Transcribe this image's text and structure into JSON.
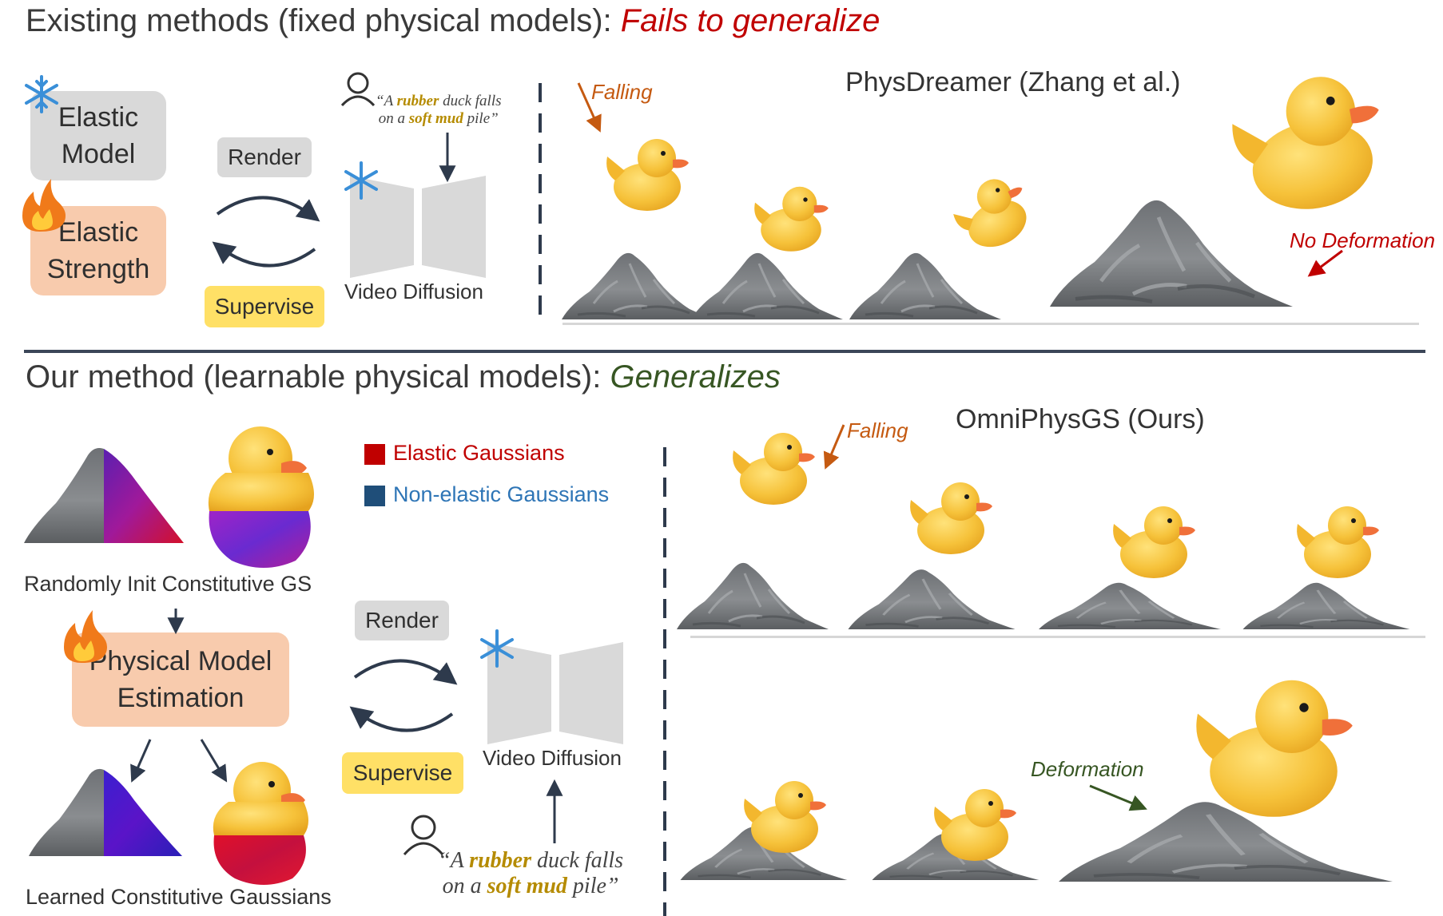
{
  "top": {
    "heading_prefix": "Existing methods (fixed physical models): ",
    "heading_highlight": "Fails to generalize",
    "elastic_model": "Elastic\nModel",
    "elastic_strength": "Elastic\nStrength",
    "render": "Render",
    "supervise": "Supervise",
    "video_diffusion": "Video Diffusion",
    "prompt_pre": "“A ",
    "prompt_w1": "rubber",
    "prompt_mid": " duck falls",
    "prompt_pre2": "on a ",
    "prompt_w2": "soft mud",
    "prompt_end": " pile”",
    "result_title": "PhysDreamer (Zhang et al.)",
    "falling": "Falling",
    "no_deformation": "No Deformation"
  },
  "bottom": {
    "heading_prefix": "Our method (learnable physical models): ",
    "heading_highlight": "Generalizes",
    "legend": [
      {
        "label": "Elastic Gaussians",
        "color": "#c00000"
      },
      {
        "label": "Non-elastic Gaussians",
        "color": "#1f4e79"
      }
    ],
    "random_init": "Randomly Init Constitutive GS",
    "physical_model": "Physical Model\nEstimation",
    "learned": "Learned Constitutive Gaussians",
    "render": "Render",
    "supervise": "Supervise",
    "video_diffusion": "Video Diffusion",
    "prompt_pre": "“A ",
    "prompt_w1": "rubber",
    "prompt_mid": " duck falls",
    "prompt_pre2": "on a ",
    "prompt_w2": "soft mud",
    "prompt_end": " pile”",
    "result_title": "OmniPhysGS (Ours)",
    "falling": "Falling",
    "deformation": "Deformation"
  },
  "colors": {
    "fail": "#c00000",
    "success": "#375623",
    "falling": "#c55a11",
    "gray_box": "#d9d9d9",
    "peach_box": "#f8cbad",
    "yellow_chip": "#ffe066",
    "duck": "#f5c542",
    "beak": "#f0703a",
    "rock": "#7a7d80"
  },
  "icons": [
    "snowflake-icon",
    "flame-icon",
    "user-icon"
  ]
}
